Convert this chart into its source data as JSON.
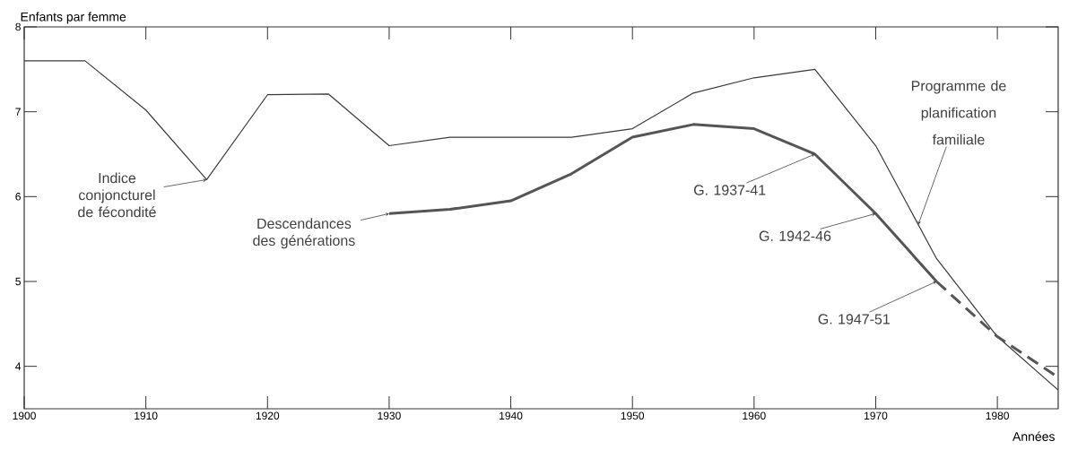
{
  "chart_data": {
    "type": "line",
    "xlabel": "Années",
    "ylabel": "Enfants par femme",
    "xlim": [
      1900,
      1985
    ],
    "ylim": [
      3.5,
      8
    ],
    "xticks": [
      1900,
      1910,
      1920,
      1930,
      1940,
      1950,
      1960,
      1970,
      1980
    ],
    "yticks": [
      4,
      5,
      6,
      7,
      8
    ],
    "grid": false,
    "marker": "none",
    "series": [
      {
        "color": "#3a3a3a",
        "line_style": "solid",
        "x": [
          1900,
          1905,
          1910,
          1915,
          1920,
          1925,
          1930,
          1935,
          1940,
          1945,
          1950,
          1955,
          1960,
          1965,
          1970,
          1975,
          1980,
          1985
        ],
        "values": [
          7.6,
          7.6,
          7.02,
          6.2,
          7.2,
          7.21,
          6.6,
          6.7,
          6.7,
          6.7,
          6.8,
          7.22,
          7.4,
          7.5,
          6.6,
          5.27,
          4.35,
          3.72
        ]
      },
      {
        "color": "#555555",
        "line_style": "solid",
        "x": [
          1930,
          1935,
          1940,
          1945,
          1950,
          1955,
          1960,
          1965,
          1970,
          1975
        ],
        "values": [
          5.8,
          5.85,
          5.95,
          6.27,
          6.7,
          6.85,
          6.8,
          6.5,
          5.8,
          5.0
        ]
      },
      {
        "color": "#555555",
        "line_style": "dashed",
        "x": [
          1975,
          1980,
          1985
        ],
        "values": [
          5.0,
          4.35,
          3.87
        ]
      }
    ],
    "annotations": [
      {
        "text": "Indice conjoncturel de fécondité",
        "x": 1915,
        "y": 6.2
      },
      {
        "text": "Descendances des générations",
        "x": 1930,
        "y": 5.8
      },
      {
        "text": "G. 1937-41",
        "x": 1965,
        "y": 6.5
      },
      {
        "text": "G. 1942-46",
        "x": 1970,
        "y": 5.8
      },
      {
        "text": "G. 1947-51",
        "x": 1975,
        "y": 5.0
      },
      {
        "text": "Programme de planification familiale",
        "x": 1973.5,
        "y": 5.67
      }
    ]
  }
}
